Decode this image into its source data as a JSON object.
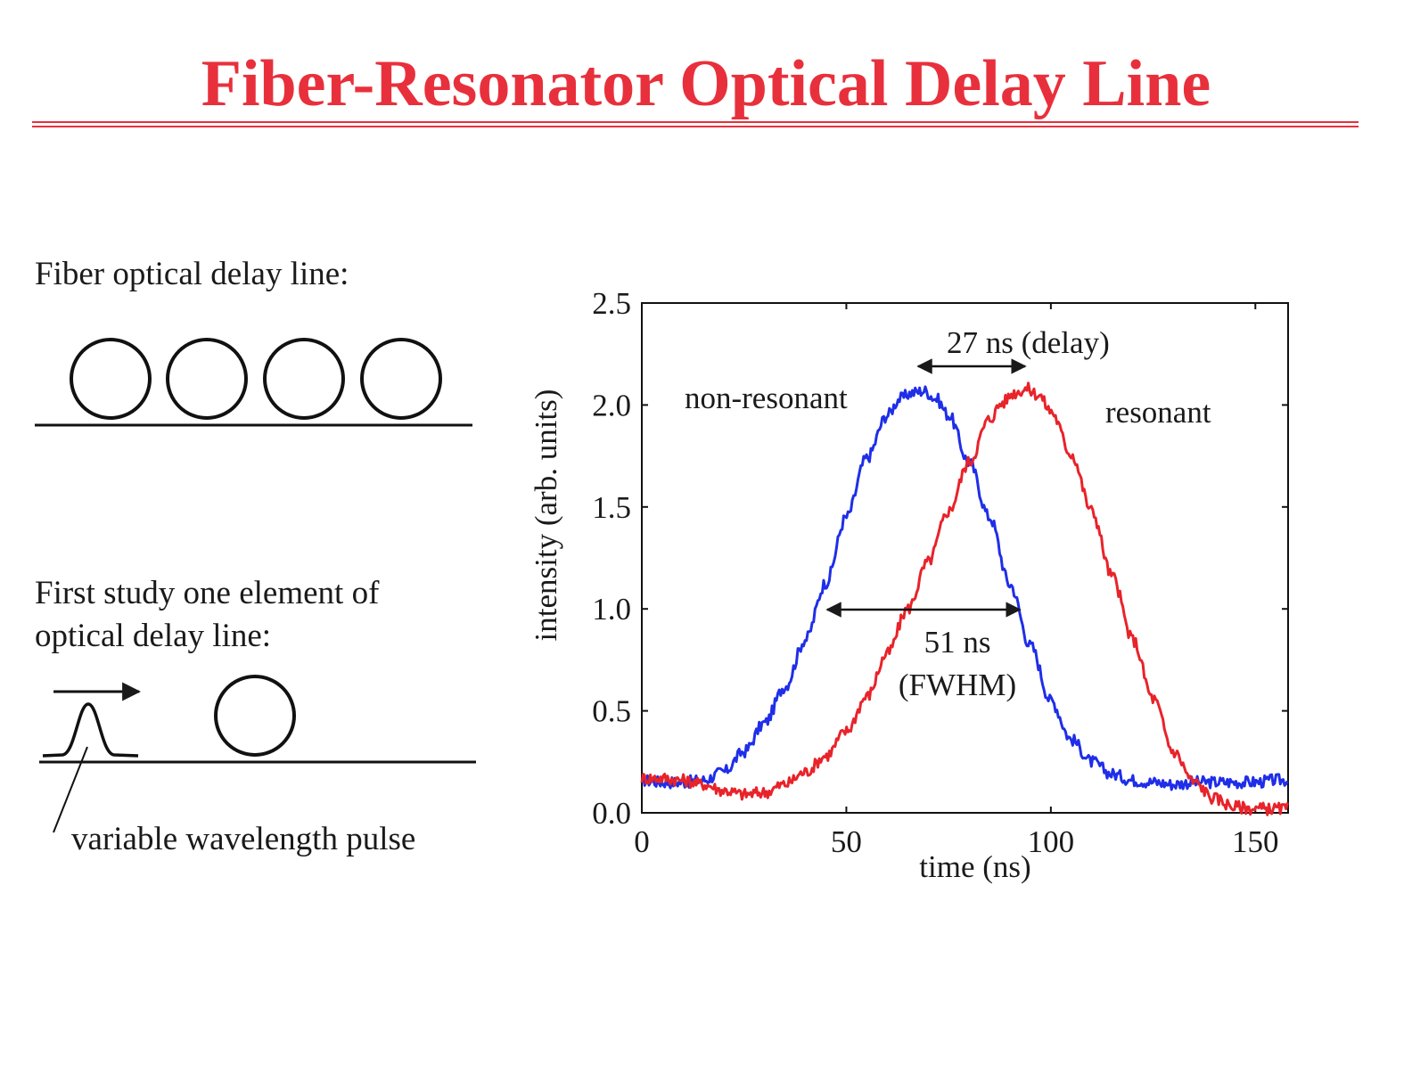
{
  "slide": {
    "title": "Fiber-Resonator Optical Delay Line",
    "accent_color": "#e8303c"
  },
  "left_panel": {
    "heading1": "Fiber optical delay line:",
    "heading2_line1": "First study one element of",
    "heading2_line2": "optical delay line:",
    "pulse_label": "variable wavelength pulse",
    "ring_count": 4
  },
  "chart_data": {
    "type": "line",
    "xlabel": "time (ns)",
    "ylabel": "intensity (arb. units)",
    "xlim": [
      0,
      158
    ],
    "ylim": [
      0,
      2.5
    ],
    "x_ticks": [
      "0",
      "50",
      "100",
      "150"
    ],
    "y_ticks": [
      "0.0",
      "0.5",
      "1.0",
      "1.5",
      "2.0",
      "2.5"
    ],
    "grid": false,
    "series": [
      {
        "name": "non-resonant",
        "color": "#1f2ee8",
        "x": [
          0,
          5,
          10,
          15,
          20,
          25,
          30,
          35,
          40,
          45,
          50,
          55,
          60,
          63,
          66,
          69,
          72,
          75,
          80,
          85,
          90,
          95,
          100,
          105,
          110,
          115,
          120,
          125,
          130,
          135,
          140,
          145,
          150,
          155,
          158
        ],
        "y": [
          0.16,
          0.15,
          0.15,
          0.16,
          0.2,
          0.3,
          0.44,
          0.62,
          0.85,
          1.13,
          1.45,
          1.74,
          1.95,
          2.03,
          2.06,
          2.07,
          2.03,
          1.95,
          1.72,
          1.45,
          1.12,
          0.82,
          0.55,
          0.36,
          0.25,
          0.19,
          0.16,
          0.15,
          0.14,
          0.15,
          0.15,
          0.15,
          0.15,
          0.16,
          0.16
        ]
      },
      {
        "name": "resonant",
        "color": "#e8232a",
        "x": [
          0,
          5,
          10,
          15,
          20,
          25,
          30,
          35,
          40,
          45,
          50,
          55,
          60,
          65,
          70,
          75,
          80,
          85,
          88,
          91,
          94,
          97,
          100,
          105,
          110,
          115,
          120,
          125,
          130,
          135,
          140,
          145,
          150,
          155,
          158
        ],
        "y": [
          0.17,
          0.17,
          0.16,
          0.14,
          0.11,
          0.09,
          0.1,
          0.14,
          0.2,
          0.28,
          0.4,
          0.57,
          0.78,
          1.0,
          1.23,
          1.48,
          1.72,
          1.93,
          2.01,
          2.06,
          2.08,
          2.05,
          1.97,
          1.76,
          1.48,
          1.16,
          0.85,
          0.56,
          0.3,
          0.15,
          0.07,
          0.03,
          0.02,
          0.02,
          0.02
        ]
      }
    ],
    "annotations": {
      "nonresonant_label": "non-resonant",
      "resonant_label": "resonant",
      "delay_label": "27 ns  (delay)",
      "fwhm_value": "51 ns",
      "fwhm_label": "(FWHM)"
    }
  }
}
